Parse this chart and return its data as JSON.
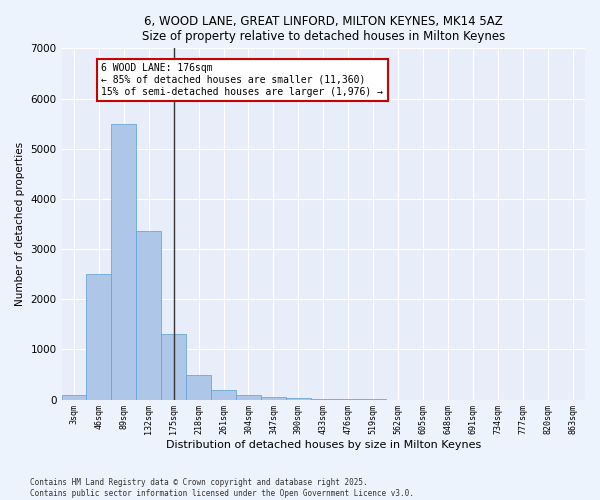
{
  "title_line1": "6, WOOD LANE, GREAT LINFORD, MILTON KEYNES, MK14 5AZ",
  "title_line2": "Size of property relative to detached houses in Milton Keynes",
  "xlabel": "Distribution of detached houses by size in Milton Keynes",
  "ylabel": "Number of detached properties",
  "categories": [
    "3sqm",
    "46sqm",
    "89sqm",
    "132sqm",
    "175sqm",
    "218sqm",
    "261sqm",
    "304sqm",
    "347sqm",
    "390sqm",
    "433sqm",
    "476sqm",
    "519sqm",
    "562sqm",
    "605sqm",
    "648sqm",
    "691sqm",
    "734sqm",
    "777sqm",
    "820sqm",
    "863sqm"
  ],
  "values": [
    100,
    2500,
    5500,
    3350,
    1300,
    480,
    200,
    95,
    50,
    30,
    10,
    5,
    2,
    1,
    0,
    0,
    0,
    0,
    0,
    0,
    0
  ],
  "bar_color": "#aec6e8",
  "bar_edge_color": "#5a9fd4",
  "vline_x_index": 4,
  "vline_color": "#333333",
  "annotation_text": "6 WOOD LANE: 176sqm\n← 85% of detached houses are smaller (11,360)\n15% of semi-detached houses are larger (1,976) →",
  "annotation_box_color": "#cc0000",
  "ylim": [
    0,
    7000
  ],
  "fig_bg_color": "#edf3fc",
  "axes_bg_color": "#e8eef9",
  "grid_color": "#ffffff",
  "footer_line1": "Contains HM Land Registry data © Crown copyright and database right 2025.",
  "footer_line2": "Contains public sector information licensed under the Open Government Licence v3.0."
}
